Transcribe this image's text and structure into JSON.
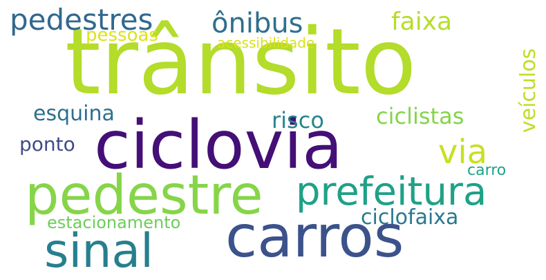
{
  "words": {
    "transito": "trânsito",
    "ciclovia": "ciclovia",
    "pedestre": "pedestre",
    "carros": "carros",
    "sinal": "sinal",
    "prefeitura": "prefeitura",
    "via": "via",
    "pedestres": "pedestres",
    "onibus": "ônibus",
    "faixa": "faixa",
    "veiculos": "veículos",
    "pessoas": "pessoas",
    "acessibilidade": "acessibilidade",
    "esquina": "esquina",
    "risco": "risco",
    "ciclistas": "ciclistas",
    "ponto": "ponto",
    "carro": "carro",
    "estacionamento": "estacionamento",
    "ciclofaixa": "ciclofaixa"
  },
  "colors": {
    "background": "#ffffff",
    "palette": "viridis"
  }
}
